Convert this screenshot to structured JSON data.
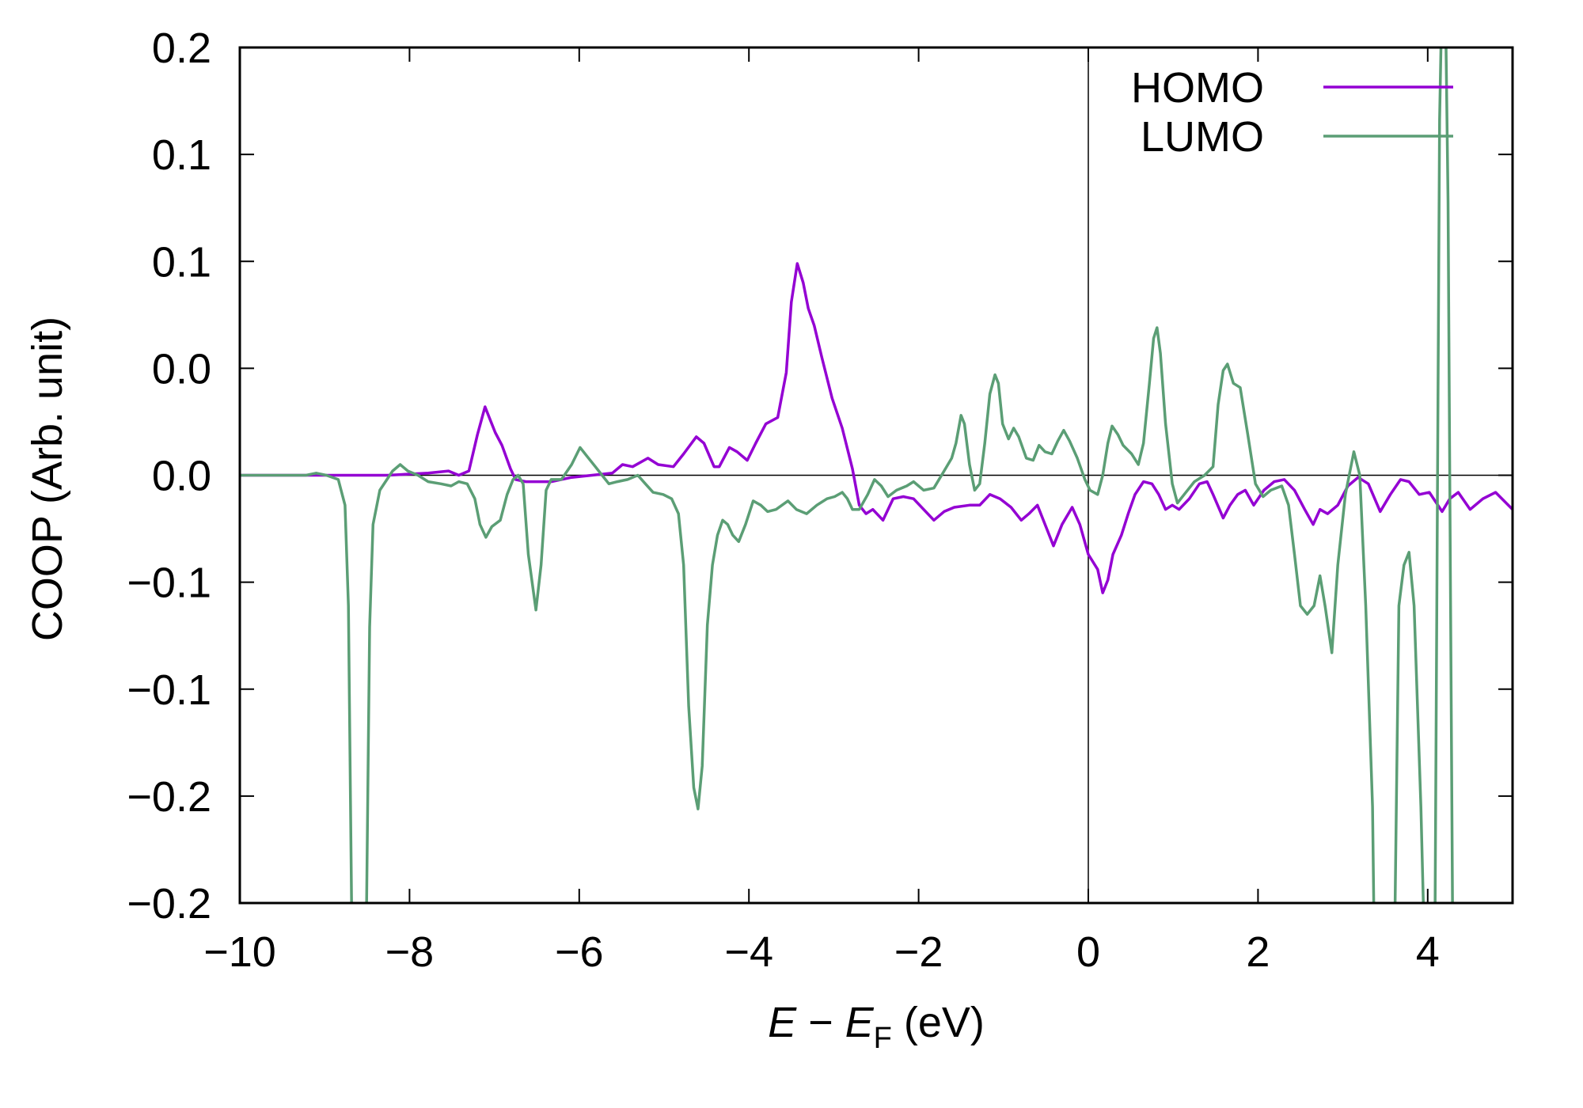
{
  "chart_data": {
    "type": "line",
    "title": "",
    "xlabel_parts": {
      "e": "E",
      "minus": " − ",
      "ef": "E",
      "sub": "F",
      "unit": " (eV)"
    },
    "ylabel": "COOP (Arb. unit)",
    "xlim": [
      -10,
      5
    ],
    "ylim": [
      -0.2,
      0.2
    ],
    "grid": false,
    "legend_placement": "top-right",
    "xticks": [
      -10,
      -8,
      -6,
      -4,
      -2,
      0,
      2,
      4
    ],
    "xticklabels": [
      "−10",
      "−8",
      "−6",
      "−4",
      "−2",
      "0",
      "2",
      "4"
    ],
    "yticks": [
      0.2,
      0.15,
      0.1,
      0.05,
      0,
      -0.05,
      -0.1,
      -0.15,
      -0.2
    ],
    "yticklabels": [
      "0.2",
      "0.1",
      "0.1",
      "0.0",
      "0.0",
      "−0.1",
      "−0.1",
      "−0.2",
      "−0.2"
    ],
    "reference_lines": {
      "y": 0,
      "x": 0
    },
    "series": [
      {
        "name": "HOMO",
        "color": "#9400d3",
        "x": [
          -10.0,
          -8.86,
          -8.26,
          -7.78,
          -7.54,
          -7.42,
          -7.3,
          -7.2,
          -7.11,
          -7.05,
          -6.99,
          -6.91,
          -6.81,
          -6.75,
          -6.63,
          -6.33,
          -6.09,
          -5.85,
          -5.61,
          -5.49,
          -5.37,
          -5.19,
          -5.07,
          -4.89,
          -4.77,
          -4.62,
          -4.53,
          -4.41,
          -4.35,
          -4.23,
          -4.14,
          -4.02,
          -3.92,
          -3.8,
          -3.66,
          -3.56,
          -3.5,
          -3.43,
          -3.36,
          -3.3,
          -3.23,
          -3.14,
          -3.02,
          -2.9,
          -2.78,
          -2.7,
          -2.62,
          -2.54,
          -2.42,
          -2.3,
          -2.18,
          -2.06,
          -1.94,
          -1.82,
          -1.7,
          -1.58,
          -1.4,
          -1.28,
          -1.16,
          -1.04,
          -0.91,
          -0.79,
          -0.7,
          -0.6,
          -0.49,
          -0.41,
          -0.31,
          -0.19,
          -0.1,
          0.0,
          0.11,
          0.17,
          0.23,
          0.29,
          0.39,
          0.47,
          0.55,
          0.65,
          0.75,
          0.83,
          0.91,
          0.99,
          1.07,
          1.19,
          1.31,
          1.4,
          1.47,
          1.59,
          1.67,
          1.76,
          1.85,
          1.95,
          2.07,
          2.19,
          2.31,
          2.43,
          2.55,
          2.65,
          2.73,
          2.82,
          2.94,
          3.06,
          3.18,
          3.3,
          3.44,
          3.56,
          3.68,
          3.78,
          3.9,
          4.02,
          4.17,
          4.26,
          4.36,
          4.5,
          4.65,
          4.8,
          5.0
        ],
        "y": [
          0,
          0,
          0.0,
          0.001,
          0.002,
          0.0,
          0.002,
          0.019,
          0.032,
          0.026,
          0.02,
          0.014,
          0.003,
          -0.002,
          -0.003,
          -0.003,
          -0.001,
          0.0,
          0.001,
          0.005,
          0.004,
          0.008,
          0.005,
          0.004,
          0.01,
          0.018,
          0.015,
          0.004,
          0.004,
          0.013,
          0.011,
          0.007,
          0.015,
          0.024,
          0.027,
          0.048,
          0.081,
          0.099,
          0.09,
          0.078,
          0.07,
          0.055,
          0.036,
          0.022,
          0.003,
          -0.014,
          -0.018,
          -0.016,
          -0.021,
          -0.011,
          -0.01,
          -0.011,
          -0.016,
          -0.021,
          -0.017,
          -0.015,
          -0.014,
          -0.014,
          -0.009,
          -0.011,
          -0.015,
          -0.021,
          -0.018,
          -0.014,
          -0.025,
          -0.033,
          -0.023,
          -0.015,
          -0.023,
          -0.037,
          -0.044,
          -0.055,
          -0.049,
          -0.037,
          -0.028,
          -0.018,
          -0.009,
          -0.003,
          -0.004,
          -0.009,
          -0.016,
          -0.014,
          -0.016,
          -0.011,
          -0.004,
          -0.003,
          -0.009,
          -0.02,
          -0.014,
          -0.009,
          -0.007,
          -0.014,
          -0.007,
          -0.003,
          -0.002,
          -0.007,
          -0.016,
          -0.023,
          -0.016,
          -0.018,
          -0.014,
          -0.005,
          -0.001,
          -0.004,
          -0.017,
          -0.009,
          -0.002,
          -0.003,
          -0.009,
          -0.008,
          -0.017,
          -0.011,
          -0.008,
          -0.016,
          -0.011,
          -0.008,
          -0.016
        ]
      },
      {
        "name": "LUMO",
        "color": "#5b9e75",
        "x": [
          -10.0,
          -9.22,
          -9.1,
          -8.98,
          -8.84,
          -8.76,
          -8.72,
          -8.67,
          -8.52,
          -8.47,
          -8.43,
          -8.35,
          -8.2,
          -8.11,
          -8.02,
          -7.9,
          -7.78,
          -7.63,
          -7.51,
          -7.42,
          -7.32,
          -7.23,
          -7.17,
          -7.1,
          -7.03,
          -6.93,
          -6.85,
          -6.78,
          -6.72,
          -6.66,
          -6.6,
          -6.51,
          -6.45,
          -6.39,
          -6.33,
          -6.21,
          -6.09,
          -5.99,
          -5.91,
          -5.81,
          -5.73,
          -5.65,
          -5.55,
          -5.43,
          -5.31,
          -5.22,
          -5.13,
          -5.01,
          -4.91,
          -4.83,
          -4.77,
          -4.71,
          -4.65,
          -4.6,
          -4.55,
          -4.49,
          -4.43,
          -4.37,
          -4.31,
          -4.25,
          -4.19,
          -4.12,
          -4.04,
          -3.95,
          -3.86,
          -3.78,
          -3.68,
          -3.54,
          -3.44,
          -3.32,
          -3.2,
          -3.08,
          -2.99,
          -2.9,
          -2.84,
          -2.78,
          -2.7,
          -2.6,
          -2.52,
          -2.44,
          -2.36,
          -2.26,
          -2.14,
          -2.06,
          -1.94,
          -1.82,
          -1.7,
          -1.61,
          -1.56,
          -1.5,
          -1.46,
          -1.4,
          -1.34,
          -1.28,
          -1.22,
          -1.16,
          -1.1,
          -1.06,
          -1.01,
          -0.94,
          -0.88,
          -0.82,
          -0.73,
          -0.65,
          -0.58,
          -0.51,
          -0.43,
          -0.36,
          -0.29,
          -0.22,
          -0.13,
          -0.04,
          0.02,
          0.11,
          0.17,
          0.23,
          0.28,
          0.35,
          0.41,
          0.51,
          0.59,
          0.65,
          0.72,
          0.77,
          0.81,
          0.85,
          0.91,
          0.99,
          1.05,
          1.13,
          1.25,
          1.37,
          1.47,
          1.53,
          1.59,
          1.64,
          1.71,
          1.79,
          1.88,
          1.97,
          2.06,
          2.15,
          2.28,
          2.36,
          2.43,
          2.5,
          2.58,
          2.66,
          2.73,
          2.79,
          2.87,
          2.94,
          3.03,
          3.13,
          3.2,
          3.27,
          3.35,
          3.38,
          3.6,
          3.66,
          3.72,
          3.78,
          3.84,
          3.92,
          3.98,
          4.08,
          4.14,
          4.18,
          4.2,
          4.24,
          4.27,
          4.3
        ],
        "y": [
          0,
          0,
          0.001,
          0,
          -0.002,
          -0.014,
          -0.061,
          -0.25,
          -0.25,
          -0.071,
          -0.023,
          -0.007,
          0.002,
          0.005,
          0.002,
          0.0,
          -0.003,
          -0.004,
          -0.005,
          -0.003,
          -0.004,
          -0.011,
          -0.023,
          -0.029,
          -0.024,
          -0.021,
          -0.009,
          -0.002,
          0.0,
          -0.004,
          -0.037,
          -0.063,
          -0.042,
          -0.007,
          -0.002,
          -0.002,
          0.005,
          0.013,
          0.009,
          0.004,
          0.0,
          -0.004,
          -0.003,
          -0.002,
          0.0,
          -0.004,
          -0.008,
          -0.009,
          -0.011,
          -0.018,
          -0.042,
          -0.108,
          -0.146,
          -0.156,
          -0.136,
          -0.07,
          -0.042,
          -0.028,
          -0.021,
          -0.023,
          -0.028,
          -0.031,
          -0.023,
          -0.012,
          -0.014,
          -0.017,
          -0.016,
          -0.012,
          -0.016,
          -0.018,
          -0.014,
          -0.011,
          -0.01,
          -0.008,
          -0.011,
          -0.016,
          -0.016,
          -0.009,
          -0.002,
          -0.005,
          -0.01,
          -0.007,
          -0.005,
          -0.003,
          -0.007,
          -0.006,
          0.002,
          0.008,
          0.015,
          0.028,
          0.024,
          0.005,
          -0.007,
          -0.004,
          0.015,
          0.038,
          0.047,
          0.043,
          0.024,
          0.017,
          0.022,
          0.018,
          0.008,
          0.007,
          0.014,
          0.011,
          0.01,
          0.016,
          0.021,
          0.016,
          0.008,
          -0.002,
          -0.007,
          -0.009,
          0.0,
          0.015,
          0.023,
          0.019,
          0.014,
          0.01,
          0.005,
          0.015,
          0.043,
          0.064,
          0.069,
          0.057,
          0.024,
          -0.004,
          -0.013,
          -0.009,
          -0.003,
          0.0,
          0.004,
          0.033,
          0.049,
          0.052,
          0.043,
          0.041,
          0.019,
          -0.004,
          -0.01,
          -0.007,
          -0.005,
          -0.014,
          -0.037,
          -0.061,
          -0.065,
          -0.061,
          -0.047,
          -0.061,
          -0.083,
          -0.042,
          -0.009,
          0.011,
          0.0,
          -0.061,
          -0.155,
          -0.25,
          -0.25,
          -0.061,
          -0.042,
          -0.036,
          -0.061,
          -0.155,
          -0.25,
          -0.25,
          0.166,
          0.25,
          0.25,
          0.128,
          -0.061,
          -0.25
        ]
      }
    ]
  }
}
